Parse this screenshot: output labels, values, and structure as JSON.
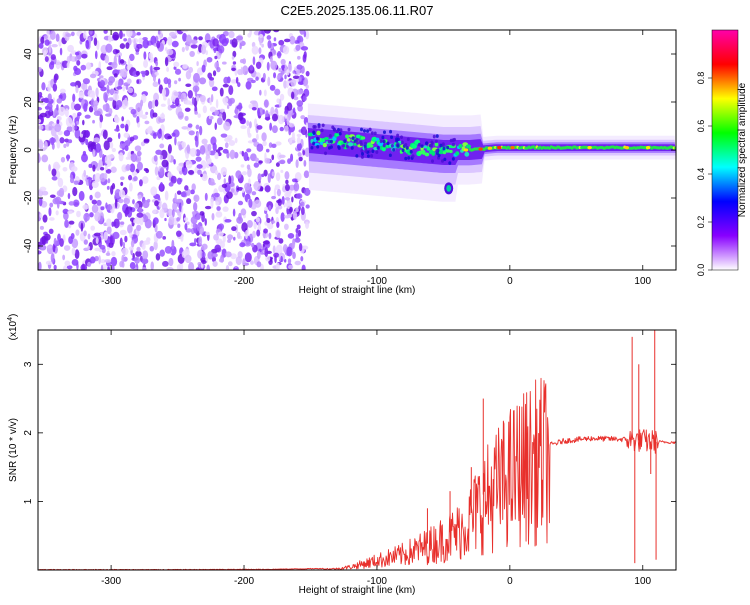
{
  "title": "C2E5.2025.135.06.11.R07",
  "colors": {
    "snr_line": "#e8302c",
    "axis": "#000000",
    "background": "#ffffff"
  },
  "chart_data": [
    {
      "type": "heatmap",
      "name": "spectrogram",
      "xlabel": "Height of straight line (km)",
      "ylabel": "Frequency (Hz)",
      "xlim": [
        -355,
        125
      ],
      "ylim": [
        -50,
        50
      ],
      "xticks": [
        -300,
        -200,
        -100,
        0,
        100
      ],
      "yticks": [
        -40,
        -20,
        0,
        20,
        40
      ],
      "colorbar": {
        "label": "Normalized spectral amplitude",
        "range": [
          0.0,
          1.0
        ],
        "ticks": [
          "0.0",
          "0.2",
          "0.4",
          "0.6",
          "0.8"
        ],
        "tick_values": [
          0.0,
          0.2,
          0.4,
          0.6,
          0.8
        ],
        "colormap": [
          "#ffffff",
          "#8800ff",
          "#0000ff",
          "#00ffff",
          "#00ff00",
          "#ffff00",
          "#ff0000",
          "#ff00aa"
        ]
      },
      "features": {
        "noise_region_x": [
          -355,
          -152
        ],
        "signal_track": [
          {
            "x": -152,
            "y": 5
          },
          {
            "x": -130,
            "y": 4
          },
          {
            "x": -110,
            "y": 3
          },
          {
            "x": -90,
            "y": 2
          },
          {
            "x": -70,
            "y": 1
          },
          {
            "x": -50,
            "y": 0
          },
          {
            "x": -30,
            "y": 0
          },
          {
            "x": -10,
            "y": 1
          },
          {
            "x": 10,
            "y": 1
          },
          {
            "x": 50,
            "y": 1
          },
          {
            "x": 90,
            "y": 1
          },
          {
            "x": 125,
            "y": 1
          }
        ],
        "blob": {
          "x": -46,
          "y": -16
        }
      }
    },
    {
      "type": "line",
      "name": "snr",
      "xlabel": "Height of straight line (km)",
      "ylabel": "SNR (10 * v/v)",
      "yunit": "(x10",
      "yunit_exp": "4",
      "xlim": [
        -355,
        125
      ],
      "ylim": [
        0,
        3.5
      ],
      "xticks": [
        -300,
        -200,
        -100,
        0,
        100
      ],
      "yticks": [
        1,
        2,
        3
      ],
      "envelope": [
        {
          "x": -355,
          "y": 0.0
        },
        {
          "x": -250,
          "y": 0.0
        },
        {
          "x": -180,
          "y": 0.005
        },
        {
          "x": -130,
          "y": 0.02
        },
        {
          "x": -120,
          "y": 0.05
        },
        {
          "x": -100,
          "y": 0.15
        },
        {
          "x": -80,
          "y": 0.25
        },
        {
          "x": -60,
          "y": 0.4
        },
        {
          "x": -40,
          "y": 0.6
        },
        {
          "x": -30,
          "y": 0.8
        },
        {
          "x": -20,
          "y": 1.1
        },
        {
          "x": -10,
          "y": 1.3
        },
        {
          "x": 0,
          "y": 1.5
        },
        {
          "x": 10,
          "y": 1.65
        },
        {
          "x": 20,
          "y": 1.75
        },
        {
          "x": 30,
          "y": 1.82
        },
        {
          "x": 40,
          "y": 1.88
        },
        {
          "x": 60,
          "y": 1.92
        },
        {
          "x": 80,
          "y": 1.91
        },
        {
          "x": 90,
          "y": 1.9
        },
        {
          "x": 110,
          "y": 1.87
        },
        {
          "x": 125,
          "y": 1.86
        }
      ],
      "spikes": [
        {
          "x": -20,
          "y": 2.5
        },
        {
          "x": -29,
          "y": 1.5
        },
        {
          "x": -45,
          "y": 1.15
        },
        {
          "x": -62,
          "y": 0.9
        },
        {
          "x": 92,
          "y": 3.4
        },
        {
          "x": 94,
          "y": 0.1
        },
        {
          "x": 97,
          "y": 3.0
        },
        {
          "x": 106,
          "y": 1.4
        },
        {
          "x": 109,
          "y": 3.5
        },
        {
          "x": 110,
          "y": 0.15
        }
      ]
    }
  ]
}
